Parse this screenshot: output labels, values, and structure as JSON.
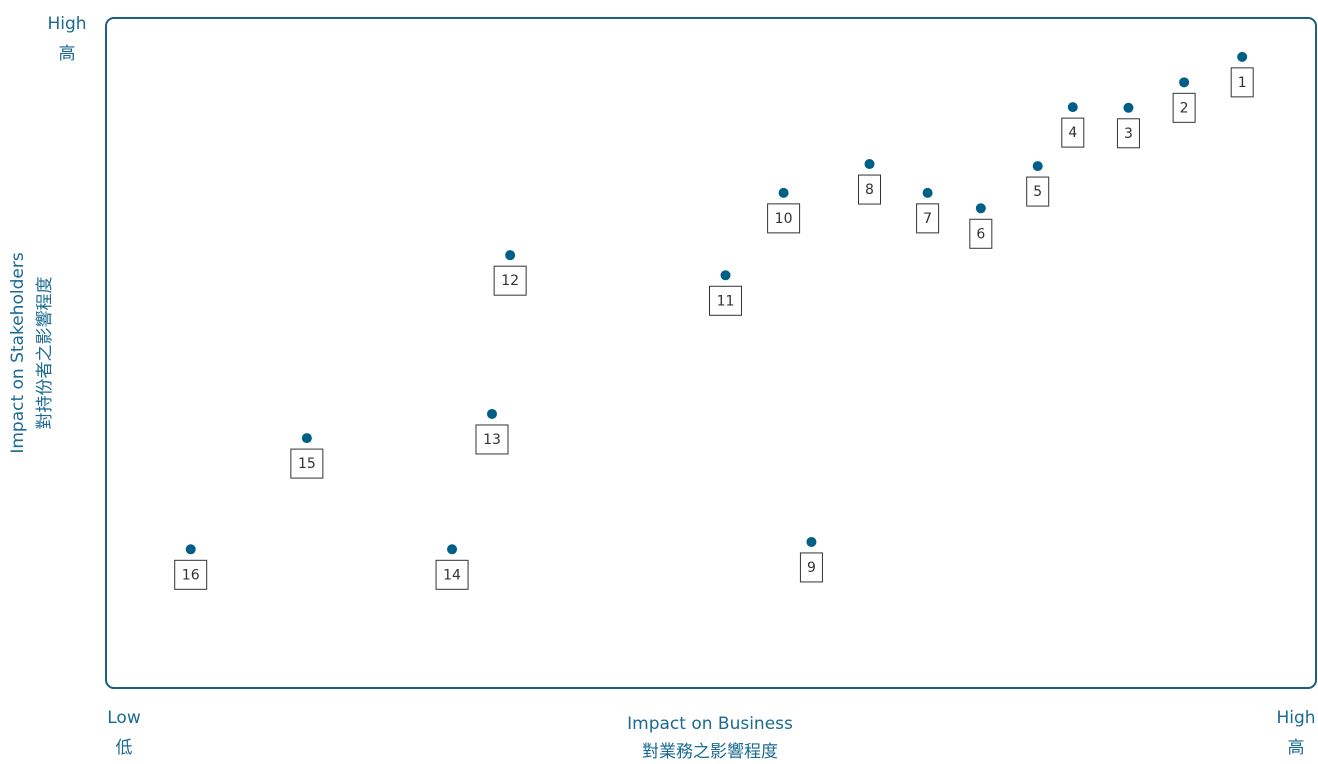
{
  "chart_data": {
    "type": "scatter",
    "x_label": "Impact on Business",
    "x_label_zh": "對業務之影響程度",
    "y_label": "Impact on Stakeholders",
    "y_label_zh": "對持份者之影響程度",
    "low_label": "Low",
    "low_label_zh": "低",
    "high_label": "High",
    "high_label_zh": "高",
    "xlim": [
      0,
      100
    ],
    "ylim": [
      0,
      100
    ],
    "color": "#005f86",
    "labels": [
      "1",
      "2",
      "3",
      "4",
      "5",
      "6",
      "7",
      "8",
      "9",
      "10",
      "11",
      "12",
      "13",
      "14",
      "15",
      "16"
    ],
    "x": [
      93.9,
      89.1,
      84.5,
      79.9,
      77.0,
      72.3,
      67.9,
      63.1,
      58.3,
      56.0,
      51.2,
      33.4,
      31.9,
      28.6,
      16.6,
      7.0
    ],
    "y": [
      94.2,
      90.4,
      86.6,
      86.7,
      77.9,
      71.6,
      73.9,
      78.2,
      21.8,
      73.9,
      61.6,
      64.6,
      40.9,
      20.7,
      37.3,
      20.7
    ]
  }
}
